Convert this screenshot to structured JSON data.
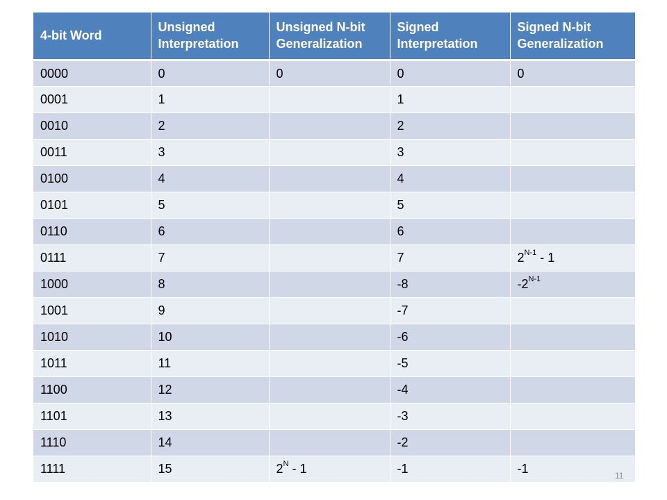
{
  "table": {
    "headers": [
      "4-bit Word",
      "Unsigned Interpretation",
      "Unsigned N-bit Generalization",
      "Signed Interpretation",
      "Signed N-bit Generalization"
    ],
    "rows": [
      [
        "0000",
        "0",
        "0",
        "0",
        "0"
      ],
      [
        "0001",
        "1",
        "",
        "1",
        ""
      ],
      [
        "0010",
        "2",
        "",
        "2",
        ""
      ],
      [
        "0011",
        "3",
        "",
        "3",
        ""
      ],
      [
        "0100",
        "4",
        "",
        "4",
        ""
      ],
      [
        "0101",
        "5",
        "",
        "5",
        ""
      ],
      [
        "0110",
        "6",
        "",
        "6",
        ""
      ],
      [
        "0111",
        "7",
        "",
        "7",
        {
          "base": "2",
          "sup": "N-1",
          "suffix": " - 1"
        }
      ],
      [
        "1000",
        "8",
        "",
        "-8",
        {
          "base": "-2",
          "sup": "N-1",
          "suffix": ""
        }
      ],
      [
        "1001",
        "9",
        "",
        "-7",
        ""
      ],
      [
        "1010",
        "10",
        "",
        "-6",
        ""
      ],
      [
        "1011",
        "11",
        "",
        "-5",
        ""
      ],
      [
        "1100",
        "12",
        "",
        "-4",
        ""
      ],
      [
        "1101",
        "13",
        "",
        "-3",
        ""
      ],
      [
        "1110",
        "14",
        "",
        "-2",
        ""
      ],
      [
        "1111",
        "15",
        {
          "base": "2",
          "sup": "N",
          "suffix": " - 1"
        },
        "-1",
        "-1"
      ]
    ]
  },
  "page_number": "11"
}
